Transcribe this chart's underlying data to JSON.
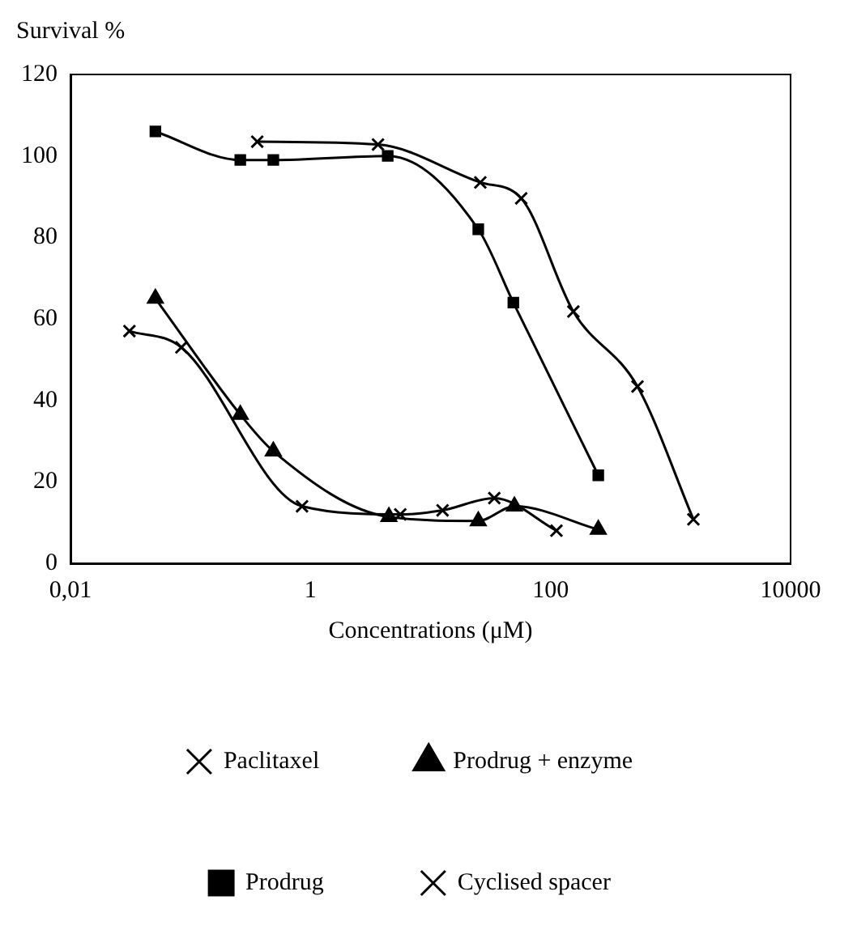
{
  "chart_data": {
    "type": "line",
    "xlabel": "Concentrations (μM)",
    "ylabel": "Survival %",
    "log": "x",
    "xlim": [
      0.01,
      10000
    ],
    "xticks": [
      {
        "value": 0.01,
        "label": "0,01"
      },
      1,
      100,
      10000
    ],
    "ylim": [
      0,
      120
    ],
    "yticks": [
      0,
      20,
      40,
      60,
      80,
      100,
      120
    ],
    "grid": false,
    "legend": "bottom",
    "series": [
      {
        "name": "Paclitaxel",
        "color": "#000000",
        "marker": "cross",
        "x": [
          0.031,
          0.084,
          0.85,
          5.6,
          12.6,
          34,
          112
        ],
        "values": [
          57,
          53,
          14,
          12,
          13,
          16,
          8
        ]
      },
      {
        "name": "Prodrug + enzyme",
        "color": "#000000",
        "marker": "triangle",
        "x": [
          0.051,
          0.26,
          0.49,
          4.5,
          25,
          50,
          250
        ],
        "values": [
          65,
          36.5,
          27.5,
          11.4,
          10.4,
          14,
          8.3
        ]
      },
      {
        "name": "Prodrug",
        "color": "#000000",
        "marker": "square",
        "x": [
          0.051,
          0.26,
          0.49,
          4.4,
          25,
          49,
          250
        ],
        "values": [
          106,
          99,
          99,
          100,
          82,
          64,
          21.6
        ]
      },
      {
        "name": "Cyclised spacer",
        "color": "#000000",
        "marker": "cross",
        "x": [
          0.36,
          3.65,
          26,
          57,
          155,
          530,
          1550
        ],
        "values": [
          103.5,
          102.8,
          93.5,
          89.6,
          61.8,
          43.4,
          10.8
        ]
      }
    ]
  }
}
